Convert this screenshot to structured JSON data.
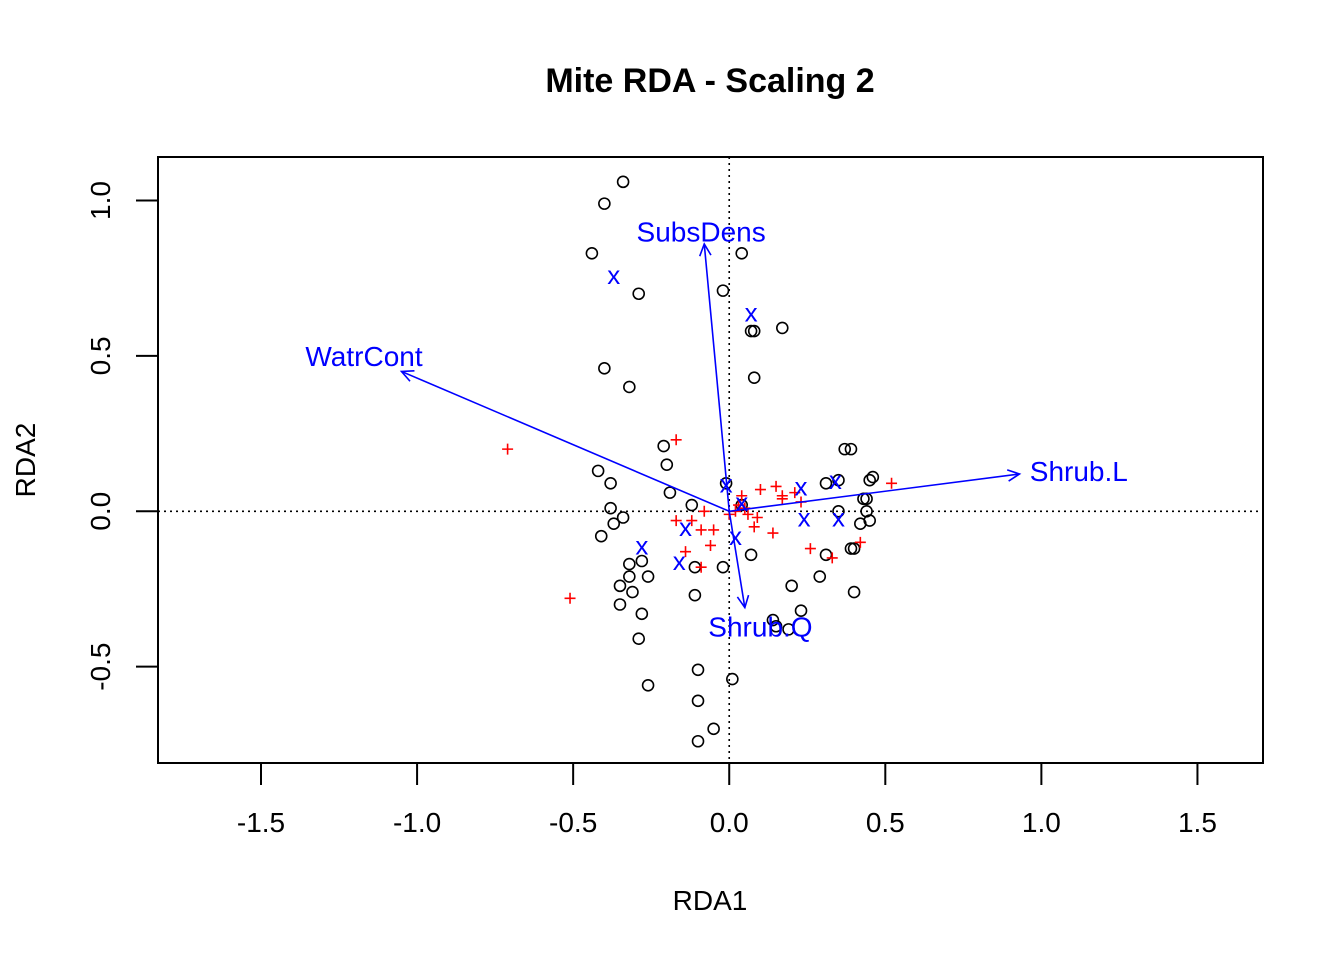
{
  "chart_data": {
    "type": "scatter",
    "title": "Mite RDA - Scaling 2",
    "xlabel": "RDA1",
    "ylabel": "RDA2",
    "xlim": [
      -1.83,
      1.71
    ],
    "ylim": [
      -0.81,
      1.14
    ],
    "x_ticks": [
      -1.5,
      -1.0,
      -0.5,
      0.0,
      0.5,
      1.0,
      1.5
    ],
    "x_tick_labels": [
      "-1.5",
      "-1.0",
      "-0.5",
      "0.0",
      "0.5",
      "1.0",
      "1.5"
    ],
    "y_ticks": [
      -0.5,
      0.0,
      0.5,
      1.0
    ],
    "y_tick_labels": [
      "-0.5",
      "0.0",
      "0.5",
      "1.0"
    ],
    "zero_lines": true,
    "colors": {
      "sites": "#000000",
      "species": "#ff0000",
      "centroids": "#0000ff",
      "biplot": "#0000ff"
    },
    "site_points": [
      [
        -0.34,
        1.06
      ],
      [
        -0.4,
        0.99
      ],
      [
        -0.44,
        0.83
      ],
      [
        0.04,
        0.83
      ],
      [
        -0.29,
        0.7
      ],
      [
        -0.02,
        0.71
      ],
      [
        0.17,
        0.59
      ],
      [
        0.07,
        0.58
      ],
      [
        0.08,
        0.58
      ],
      [
        -0.4,
        0.46
      ],
      [
        -0.32,
        0.4
      ],
      [
        0.08,
        0.43
      ],
      [
        0.37,
        0.2
      ],
      [
        0.39,
        0.2
      ],
      [
        -0.21,
        0.21
      ],
      [
        -0.2,
        0.15
      ],
      [
        -0.42,
        0.13
      ],
      [
        -0.38,
        0.09
      ],
      [
        0.46,
        0.11
      ],
      [
        0.45,
        0.1
      ],
      [
        0.31,
        0.09
      ],
      [
        0.35,
        0.1
      ],
      [
        -0.19,
        0.06
      ],
      [
        0.43,
        0.04
      ],
      [
        0.44,
        0.04
      ],
      [
        -0.01,
        0.09
      ],
      [
        -0.12,
        0.02
      ],
      [
        0.04,
        0.02
      ],
      [
        -0.38,
        0.01
      ],
      [
        -0.34,
        -0.02
      ],
      [
        -0.37,
        -0.04
      ],
      [
        0.35,
        0.0
      ],
      [
        0.44,
        0.0
      ],
      [
        0.45,
        -0.03
      ],
      [
        0.42,
        -0.04
      ],
      [
        -0.41,
        -0.08
      ],
      [
        0.4,
        -0.12
      ],
      [
        0.39,
        -0.12
      ],
      [
        0.31,
        -0.14
      ],
      [
        0.07,
        -0.14
      ],
      [
        -0.32,
        -0.17
      ],
      [
        -0.28,
        -0.16
      ],
      [
        -0.11,
        -0.18
      ],
      [
        -0.02,
        -0.18
      ],
      [
        -0.32,
        -0.21
      ],
      [
        -0.26,
        -0.21
      ],
      [
        0.29,
        -0.21
      ],
      [
        -0.35,
        -0.24
      ],
      [
        0.2,
        -0.24
      ],
      [
        -0.31,
        -0.26
      ],
      [
        0.4,
        -0.26
      ],
      [
        -0.11,
        -0.27
      ],
      [
        -0.35,
        -0.3
      ],
      [
        -0.28,
        -0.33
      ],
      [
        0.23,
        -0.32
      ],
      [
        0.14,
        -0.35
      ],
      [
        0.15,
        -0.37
      ],
      [
        0.19,
        -0.38
      ],
      [
        -0.29,
        -0.41
      ],
      [
        -0.1,
        -0.51
      ],
      [
        0.01,
        -0.54
      ],
      [
        -0.26,
        -0.56
      ],
      [
        -0.1,
        -0.61
      ],
      [
        -0.05,
        -0.7
      ],
      [
        -0.1,
        -0.74
      ]
    ],
    "species_points": [
      [
        -0.71,
        0.2
      ],
      [
        -0.17,
        0.23
      ],
      [
        0.52,
        0.09
      ],
      [
        -0.51,
        -0.28
      ],
      [
        0.42,
        -0.1
      ],
      [
        0.04,
        0.05
      ],
      [
        0.1,
        0.07
      ],
      [
        0.15,
        0.08
      ],
      [
        0.17,
        0.05
      ],
      [
        0.21,
        0.06
      ],
      [
        0.23,
        0.03
      ],
      [
        0.02,
        0.0
      ],
      [
        0.05,
        0.01
      ],
      [
        0.06,
        -0.01
      ],
      [
        0.09,
        -0.02
      ],
      [
        0.03,
        0.02
      ],
      [
        0.0,
        -0.01
      ],
      [
        -0.08,
        0.0
      ],
      [
        -0.12,
        -0.03
      ],
      [
        -0.17,
        -0.03
      ],
      [
        -0.09,
        -0.06
      ],
      [
        -0.05,
        -0.06
      ],
      [
        0.08,
        -0.05
      ],
      [
        0.14,
        -0.07
      ],
      [
        -0.06,
        -0.11
      ],
      [
        -0.14,
        -0.13
      ],
      [
        0.26,
        -0.12
      ],
      [
        0.33,
        -0.15
      ],
      [
        -0.09,
        -0.18
      ],
      [
        0.17,
        0.04
      ]
    ],
    "centroid_points": [
      [
        -0.37,
        0.76
      ],
      [
        0.07,
        0.64
      ],
      [
        -0.01,
        0.09
      ],
      [
        0.04,
        0.03
      ],
      [
        0.23,
        0.08
      ],
      [
        0.34,
        0.1
      ],
      [
        0.24,
        -0.02
      ],
      [
        0.35,
        -0.02
      ],
      [
        -0.14,
        -0.05
      ],
      [
        -0.28,
        -0.11
      ],
      [
        0.02,
        -0.08
      ],
      [
        -0.16,
        -0.16
      ]
    ],
    "centroid_marker": "x",
    "biplot_arrows": [
      {
        "name": "SubsDens",
        "x": -0.08,
        "y": 0.86,
        "label_x": -0.09,
        "label_y": 0.9
      },
      {
        "name": "WatrCont",
        "x": -1.05,
        "y": 0.45,
        "label_x": -1.17,
        "label_y": 0.5
      },
      {
        "name": "Shrub.L",
        "x": 0.93,
        "y": 0.12,
        "label_x": 1.12,
        "label_y": 0.13
      },
      {
        "name": "Shrub.Q",
        "x": 0.05,
        "y": -0.31,
        "label_x": 0.1,
        "label_y": -0.37
      }
    ]
  }
}
